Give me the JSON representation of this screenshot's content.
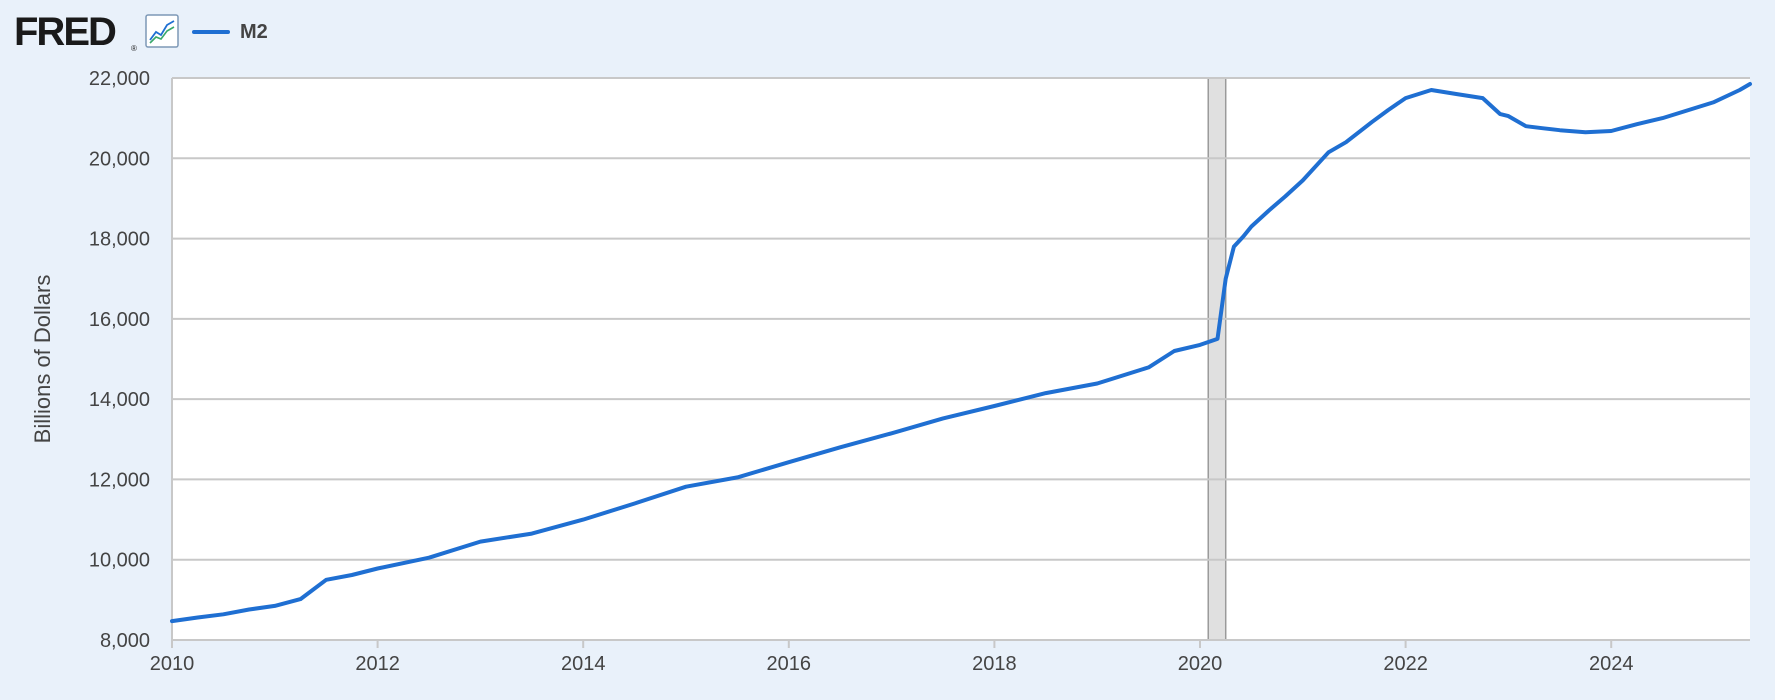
{
  "header": {
    "logo_text": "FRED",
    "logo_reg": "®",
    "chart_icon": "line-chart-icon",
    "legend_label": "M2"
  },
  "colors": {
    "series": "#1f6fd2",
    "background": "#e9f1fa",
    "plot_background": "#ffffff",
    "grid": "#c8c8c8",
    "recession": "#e0e0e0"
  },
  "chart_data": {
    "type": "line",
    "title": "",
    "xlabel": "",
    "ylabel": "Billions of Dollars",
    "xlim": [
      2010.0,
      2025.35
    ],
    "ylim": [
      8000,
      22000
    ],
    "x_ticks": [
      2010,
      2012,
      2014,
      2016,
      2018,
      2020,
      2022,
      2024
    ],
    "x_tick_labels": [
      "2010",
      "2012",
      "2014",
      "2016",
      "2018",
      "2020",
      "2022",
      "2024"
    ],
    "y_ticks": [
      8000,
      10000,
      12000,
      14000,
      16000,
      18000,
      20000,
      22000
    ],
    "y_tick_labels": [
      "8,000",
      "10,000",
      "12,000",
      "14,000",
      "16,000",
      "18,000",
      "20,000",
      "22,000"
    ],
    "grid": true,
    "legend": "top-left",
    "recession_shading": [
      [
        2020.08,
        2020.25
      ]
    ],
    "series": [
      {
        "name": "M2",
        "x": [
          2010.0,
          2010.25,
          2010.5,
          2010.75,
          2011.0,
          2011.25,
          2011.5,
          2011.75,
          2012.0,
          2012.5,
          2013.0,
          2013.5,
          2014.0,
          2014.5,
          2015.0,
          2015.5,
          2016.0,
          2016.5,
          2017.0,
          2017.5,
          2018.0,
          2018.5,
          2019.0,
          2019.5,
          2019.75,
          2020.0,
          2020.17,
          2020.25,
          2020.33,
          2020.42,
          2020.5,
          2020.67,
          2020.83,
          2021.0,
          2021.25,
          2021.42,
          2021.67,
          2021.83,
          2022.0,
          2022.25,
          2022.5,
          2022.75,
          2022.92,
          2023.0,
          2023.17,
          2023.33,
          2023.5,
          2023.75,
          2024.0,
          2024.25,
          2024.5,
          2024.75,
          2025.0,
          2025.25,
          2025.35
        ],
        "y": [
          8470,
          8560,
          8640,
          8760,
          8850,
          9020,
          9500,
          9620,
          9780,
          10050,
          10450,
          10650,
          11000,
          11400,
          11820,
          12050,
          12430,
          12800,
          13150,
          13520,
          13830,
          14150,
          14390,
          14790,
          15200,
          15350,
          15500,
          17000,
          17800,
          18050,
          18300,
          18700,
          19050,
          19450,
          20150,
          20400,
          20900,
          21200,
          21500,
          21700,
          21600,
          21500,
          21100,
          21050,
          20800,
          20750,
          20700,
          20650,
          20680,
          20850,
          21000,
          21200,
          21400,
          21700,
          21850
        ]
      }
    ]
  }
}
